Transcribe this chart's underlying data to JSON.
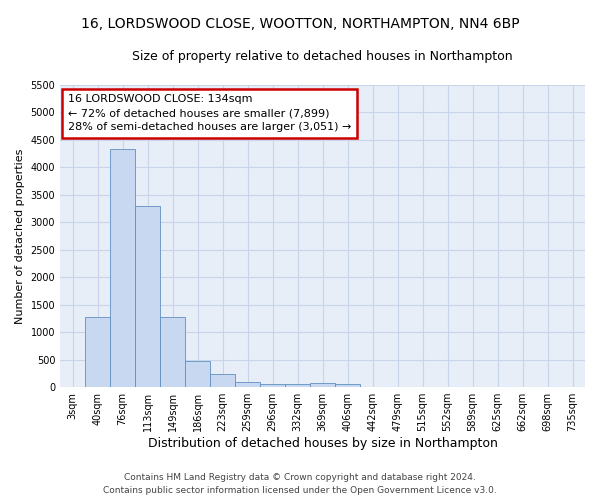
{
  "title": "16, LORDSWOOD CLOSE, WOOTTON, NORTHAMPTON, NN4 6BP",
  "subtitle": "Size of property relative to detached houses in Northampton",
  "xlabel": "Distribution of detached houses by size in Northampton",
  "ylabel": "Number of detached properties",
  "categories": [
    "3sqm",
    "40sqm",
    "76sqm",
    "113sqm",
    "149sqm",
    "186sqm",
    "223sqm",
    "259sqm",
    "296sqm",
    "332sqm",
    "369sqm",
    "406sqm",
    "442sqm",
    "479sqm",
    "515sqm",
    "552sqm",
    "589sqm",
    "625sqm",
    "662sqm",
    "698sqm",
    "735sqm"
  ],
  "values": [
    0,
    1270,
    4330,
    3290,
    1280,
    480,
    230,
    100,
    65,
    50,
    80,
    60,
    0,
    0,
    0,
    0,
    0,
    0,
    0,
    0,
    0
  ],
  "bar_color": "#c8d8f0",
  "bar_edge_color": "#6090c0",
  "annotation_text": "16 LORDSWOOD CLOSE: 134sqm\n← 72% of detached houses are smaller (7,899)\n28% of semi-detached houses are larger (3,051) →",
  "annotation_box_color": "#ffffff",
  "annotation_box_edge_color": "#cc0000",
  "ylim": [
    0,
    5500
  ],
  "yticks": [
    0,
    500,
    1000,
    1500,
    2000,
    2500,
    3000,
    3500,
    4000,
    4500,
    5000,
    5500
  ],
  "background_color": "#e8eef8",
  "grid_color": "#c8d4e8",
  "figure_bg": "#ffffff",
  "footer_text": "Contains HM Land Registry data © Crown copyright and database right 2024.\nContains public sector information licensed under the Open Government Licence v3.0.",
  "title_fontsize": 10,
  "subtitle_fontsize": 9,
  "xlabel_fontsize": 9,
  "ylabel_fontsize": 8,
  "tick_fontsize": 7,
  "footer_fontsize": 6.5
}
